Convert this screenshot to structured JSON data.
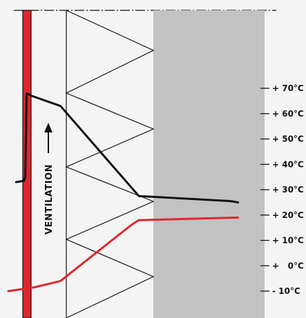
{
  "chart_data": {
    "type": "line",
    "title": "",
    "xlabel": "",
    "ylabel": "",
    "y_unit": "°C",
    "ylim": [
      -10,
      70
    ],
    "y_ticks": [
      {
        "value": 70,
        "label": "+ 70°C"
      },
      {
        "value": 60,
        "label": "+ 60°C"
      },
      {
        "value": 50,
        "label": "+ 50°C"
      },
      {
        "value": 40,
        "label": "+ 40°C"
      },
      {
        "value": 30,
        "label": "+ 30°C"
      },
      {
        "value": 20,
        "label": "+ 20°C"
      },
      {
        "value": 10,
        "label": "+ 10°C"
      },
      {
        "value": 0,
        "label": "+   0°C"
      },
      {
        "value": -10,
        "label": "- 10°C"
      }
    ],
    "series": [
      {
        "color": "#111111",
        "points": [
          {
            "x": 0.03,
            "y": 33
          },
          {
            "x": 0.06,
            "y": 33.5
          },
          {
            "x": 0.065,
            "y": 35
          },
          {
            "x": 0.07,
            "y": 68
          },
          {
            "x": 0.09,
            "y": 67
          },
          {
            "x": 0.2,
            "y": 63
          },
          {
            "x": 0.5,
            "y": 27.5
          },
          {
            "x": 0.85,
            "y": 25.5
          },
          {
            "x": 0.88,
            "y": 25
          }
        ]
      },
      {
        "color": "#e0262e",
        "points": [
          {
            "x": 0.0,
            "y": -10
          },
          {
            "x": 0.1,
            "y": -8.5
          },
          {
            "x": 0.2,
            "y": -6
          },
          {
            "x": 0.47,
            "y": 16
          },
          {
            "x": 0.5,
            "y": 18
          },
          {
            "x": 0.88,
            "y": 19
          }
        ]
      }
    ]
  },
  "ventilation_label": "VENTILATION",
  "colors": {
    "background": "#f4f4f4",
    "wall": "#e0262e",
    "insulation_block": "#c2c2c2",
    "line": "#111111"
  }
}
